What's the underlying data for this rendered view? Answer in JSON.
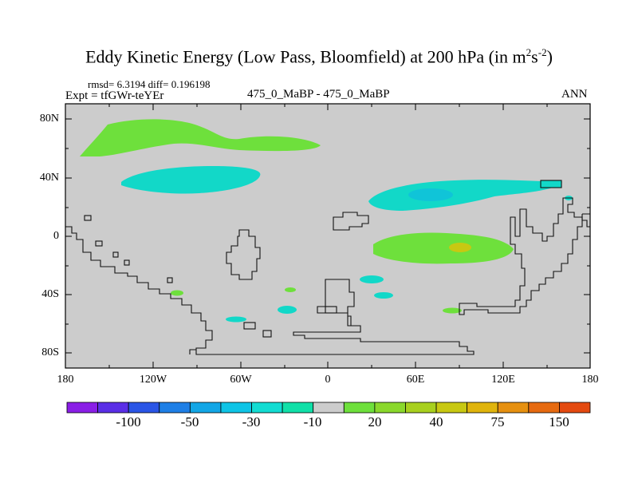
{
  "title": {
    "main": "Eddy Kinetic Energy (Low Pass, Bloomfield) at 200 hPa (in m",
    "sup1": "2",
    "mid": "s",
    "sup2": "-2",
    "close": ")"
  },
  "stats": {
    "rmsd": "rmsd= 6.3194 diff= 0.196198"
  },
  "expt": "Expt = tfGWr-teYEr",
  "case_label": "475_0_MaBP - 475_0_MaBP",
  "season": "ANN",
  "axes": {
    "y_ticks": [
      "80N",
      "40N",
      "0",
      "40S",
      "80S"
    ],
    "x_ticks": [
      "180",
      "120W",
      "60W",
      "0",
      "60E",
      "120E",
      "180"
    ]
  },
  "colorbar": {
    "labels": [
      "-100",
      "-50",
      "-30",
      "-10",
      "20",
      "40",
      "75",
      "150"
    ],
    "colors": [
      "#8a1ee6",
      "#5a2ee6",
      "#2a55e6",
      "#1e7fe6",
      "#12a6e6",
      "#0ec4e6",
      "#12dcd2",
      "#10e0a8",
      "#cccccc",
      "#6ee03c",
      "#8ad82c",
      "#a8d01e",
      "#c8c812",
      "#e0b40c",
      "#e69010",
      "#e66a10",
      "#e44a10"
    ]
  },
  "palette": {
    "background": "#cccccc",
    "positive": "#6ee03c",
    "negative": "#12d8c8",
    "deep_negative": "#10c4d8",
    "peak": "#c8c812"
  }
}
